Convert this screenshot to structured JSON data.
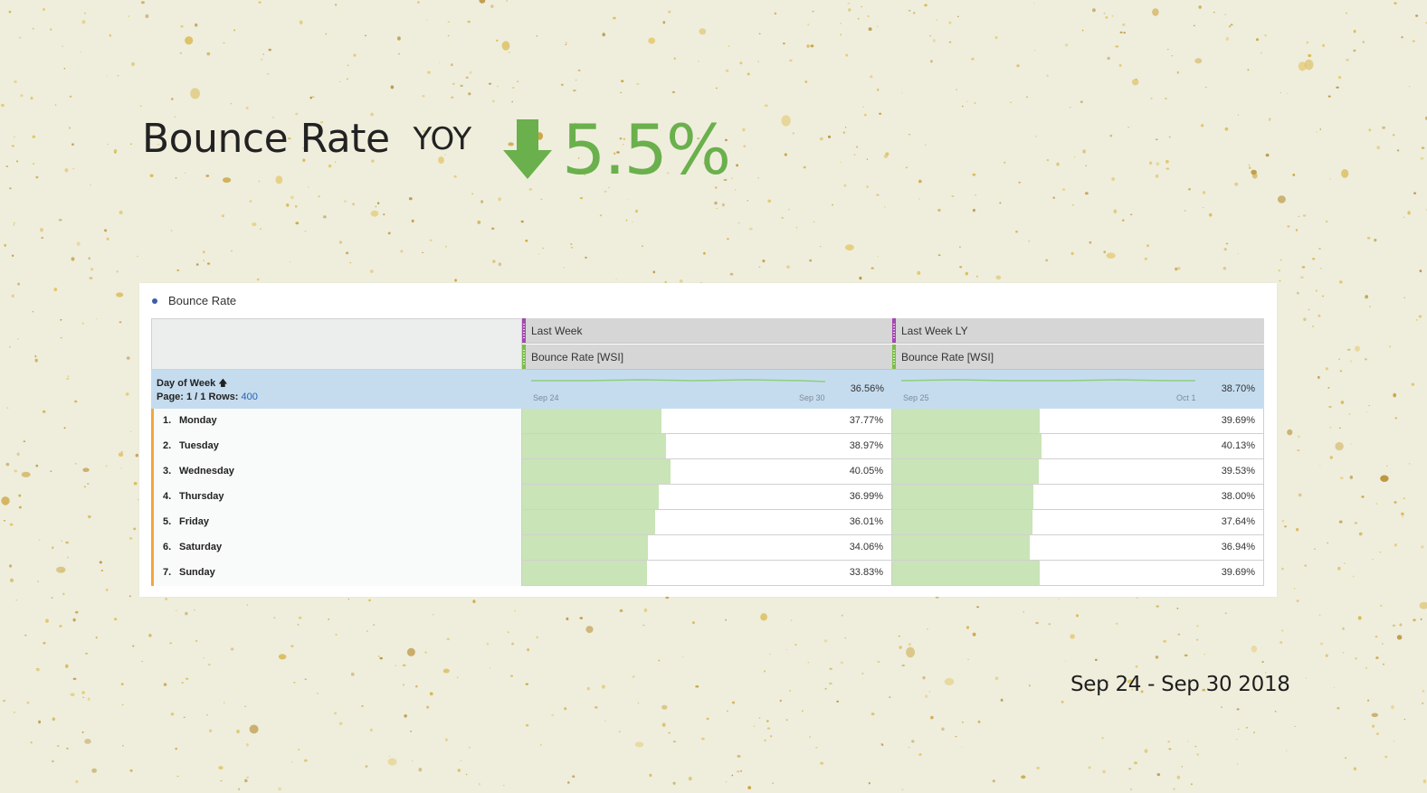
{
  "headline": {
    "title": "Bounce Rate",
    "yoy_label": "YOY",
    "change_value": "5.5%",
    "change_direction": "down",
    "change_color": "#6ab04c",
    "change_icon": "arrow-down-icon"
  },
  "card": {
    "title": "Bounce Rate",
    "columns": [
      {
        "period": "Last Week",
        "metric": "Bounce Rate [WSI]",
        "spark_start": "Sep 24",
        "spark_end": "Sep 30",
        "total": "36.56%"
      },
      {
        "period": "Last Week LY",
        "metric": "Bounce Rate [WSI]",
        "spark_start": "Sep 25",
        "spark_end": "Oct 1",
        "total": "38.70%"
      }
    ],
    "dimension": {
      "label": "Day of Week",
      "sort_icon": "arrow-up-icon",
      "page_label": "Page: 1 / 1 Rows:",
      "rows_value": "400"
    },
    "rows": [
      {
        "index": "1.",
        "name": "Monday",
        "values": [
          "37.77%",
          "39.69%"
        ]
      },
      {
        "index": "2.",
        "name": "Tuesday",
        "values": [
          "38.97%",
          "40.13%"
        ]
      },
      {
        "index": "3.",
        "name": "Wednesday",
        "values": [
          "40.05%",
          "39.53%"
        ]
      },
      {
        "index": "4.",
        "name": "Thursday",
        "values": [
          "36.99%",
          "38.00%"
        ]
      },
      {
        "index": "5.",
        "name": "Friday",
        "values": [
          "36.01%",
          "37.64%"
        ]
      },
      {
        "index": "6.",
        "name": "Saturday",
        "values": [
          "34.06%",
          "36.94%"
        ]
      },
      {
        "index": "7.",
        "name": "Sunday",
        "values": [
          "33.83%",
          "39.69%"
        ]
      }
    ],
    "bar_scale_max": 100
  },
  "date_range": "Sep 24 - Sep 30 2018"
}
